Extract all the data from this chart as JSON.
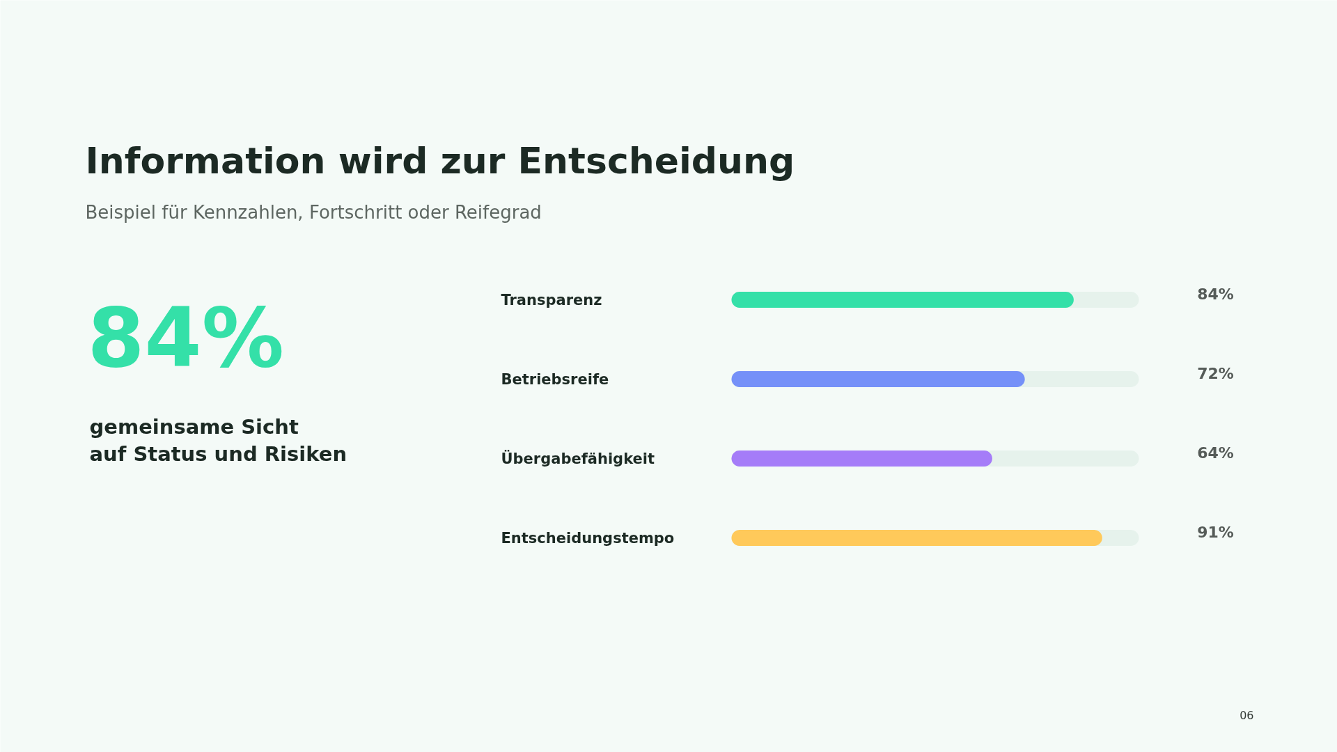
{
  "chart_data": {
    "type": "bar",
    "orientation": "horizontal",
    "title": "Information wird zur Entscheidung",
    "subtitle": "Beispiel für Kennzahlen, Fortschritt oder Reifegrad",
    "categories": [
      "Transparenz",
      "Betriebsreife",
      "Übergabefähigkeit",
      "Entscheidungstempo"
    ],
    "values": [
      84,
      72,
      64,
      91
    ],
    "colors": [
      "#34e0a8",
      "#7590f8",
      "#a57cf8",
      "#ffc95a"
    ],
    "value_labels": [
      "84%",
      "72%",
      "64%",
      "91%"
    ],
    "xlim": [
      0,
      100
    ],
    "tick_labels": false,
    "grid": false,
    "annotations": [
      "84%",
      "gemeinsame Sicht\nauf Status und Risiken",
      "06"
    ]
  }
}
